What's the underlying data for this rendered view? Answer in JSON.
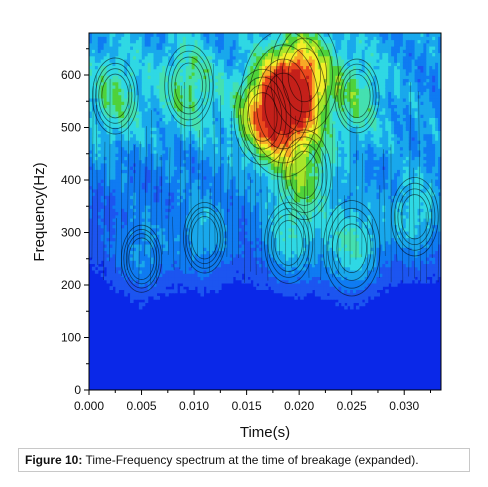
{
  "chart_data": {
    "type": "heatmap",
    "plot": "filled contour",
    "xlabel": "Time(s)",
    "ylabel": "Frequency(Hz)",
    "xlim": [
      0.0,
      0.0335
    ],
    "ylim": [
      0,
      680
    ],
    "x_ticks": [
      0.0,
      0.005,
      0.01,
      0.015,
      0.02,
      0.025,
      0.03
    ],
    "x_tick_labels": [
      "0.000",
      "0.005",
      "0.010",
      "0.015",
      "0.020",
      "0.025",
      "0.030"
    ],
    "y_ticks": [
      0,
      100,
      200,
      300,
      400,
      500,
      600
    ],
    "y_tick_labels": [
      "0",
      "100",
      "200",
      "300",
      "400",
      "500",
      "600"
    ],
    "colormap": [
      "#0a28e8",
      "#1c55f0",
      "#0f7bf2",
      "#19a8ec",
      "#2fd8e4",
      "#44e0b0",
      "#4fd23a",
      "#a8e62a",
      "#f3ee2a",
      "#f8a826",
      "#e9481c",
      "#c4201a"
    ],
    "contour_color": "#000000",
    "peak": {
      "time": 0.018,
      "frequency": 540
    },
    "energy_features": [
      {
        "time": 0.0185,
        "frequency": 545,
        "level": 1.0
      },
      {
        "time": 0.0205,
        "frequency": 600,
        "level": 0.72
      },
      {
        "time": 0.0165,
        "frequency": 520,
        "level": 0.55
      },
      {
        "time": 0.0095,
        "frequency": 580,
        "level": 0.42
      },
      {
        "time": 0.0025,
        "frequency": 560,
        "level": 0.38
      },
      {
        "time": 0.0255,
        "frequency": 560,
        "level": 0.36
      },
      {
        "time": 0.0205,
        "frequency": 410,
        "level": 0.5
      },
      {
        "time": 0.025,
        "frequency": 270,
        "level": 0.55
      },
      {
        "time": 0.019,
        "frequency": 280,
        "level": 0.42
      },
      {
        "time": 0.011,
        "frequency": 290,
        "level": 0.33
      },
      {
        "time": 0.031,
        "frequency": 330,
        "level": 0.4
      },
      {
        "time": 0.005,
        "frequency": 250,
        "level": 0.3
      }
    ]
  },
  "caption": {
    "label": "Figure 10:",
    "text": "Time-Frequency spectrum at the time of breakage (expanded)."
  }
}
